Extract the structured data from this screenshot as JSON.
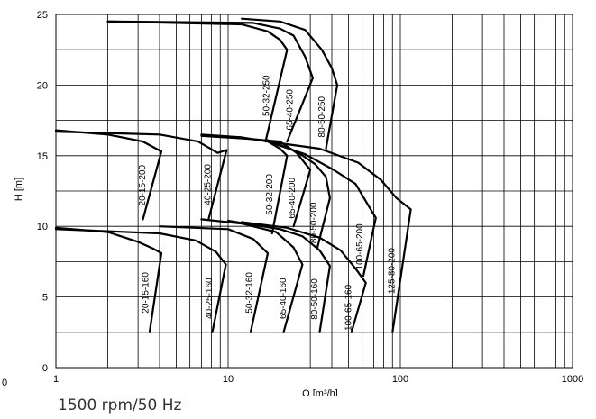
{
  "chart_data": {
    "type": "line",
    "x_scale": "log",
    "xlim": [
      1,
      1000
    ],
    "ylim": [
      0,
      25
    ],
    "xlabel": "Q [m³/h]",
    "ylabel": "H [m]",
    "x_ticks": [
      "1",
      "10",
      "100",
      "1000"
    ],
    "y_ticks": [
      "0",
      "5",
      "10",
      "15",
      "20",
      "25"
    ],
    "stray_label": "0",
    "grid": true,
    "series": [
      {
        "name": "20-15-160",
        "points": [
          [
            1,
            9.9
          ],
          [
            2,
            9.6
          ],
          [
            3,
            8.9
          ],
          [
            3.7,
            8.4
          ],
          [
            4.1,
            8.1
          ],
          [
            3.5,
            2.5
          ]
        ]
      },
      {
        "name": "40-25-160",
        "points": [
          [
            1,
            9.8
          ],
          [
            4,
            9.5
          ],
          [
            6.5,
            9.0
          ],
          [
            8.5,
            8.2
          ],
          [
            9.7,
            7.3
          ],
          [
            8.1,
            2.5
          ]
        ]
      },
      {
        "name": "50-32-160",
        "points": [
          [
            4,
            10.0
          ],
          [
            10,
            9.8
          ],
          [
            14,
            9.1
          ],
          [
            17,
            8.1
          ],
          [
            13.5,
            2.5
          ]
        ]
      },
      {
        "name": "65-40-160",
        "points": [
          [
            7,
            10.5
          ],
          [
            12,
            10.2
          ],
          [
            19,
            9.6
          ],
          [
            24,
            8.5
          ],
          [
            27,
            7.3
          ],
          [
            21,
            2.5
          ]
        ]
      },
      {
        "name": "80-50-160",
        "points": [
          [
            10,
            10.4
          ],
          [
            20,
            9.8
          ],
          [
            27,
            9.3
          ],
          [
            34,
            8.3
          ],
          [
            39,
            7.2
          ],
          [
            34,
            2.5
          ]
        ]
      },
      {
        "name": "100-65-160",
        "points": [
          [
            12,
            10.3
          ],
          [
            22,
            9.9
          ],
          [
            34,
            9.2
          ],
          [
            45,
            8.3
          ],
          [
            55,
            7.0
          ],
          [
            63,
            6.0
          ],
          [
            52,
            2.5
          ]
        ]
      },
      {
        "name": "20-15-200",
        "points": [
          [
            1,
            16.8
          ],
          [
            2,
            16.5
          ],
          [
            3.2,
            16.0
          ],
          [
            4.1,
            15.3
          ],
          [
            3.2,
            10.5
          ]
        ]
      },
      {
        "name": "40-25-200",
        "points": [
          [
            1,
            16.7
          ],
          [
            4,
            16.5
          ],
          [
            6.7,
            16.0
          ],
          [
            8.7,
            15.2
          ],
          [
            9.8,
            15.4
          ],
          [
            7.7,
            10.5
          ]
        ]
      },
      {
        "name": "50-32-200",
        "points": [
          [
            7,
            16.5
          ],
          [
            12,
            16.3
          ],
          [
            17,
            16.0
          ],
          [
            20,
            15.5
          ],
          [
            22,
            15.0
          ],
          [
            18,
            9.5
          ]
        ]
      },
      {
        "name": "65-40-200",
        "points": [
          [
            7,
            16.4
          ],
          [
            13,
            16.2
          ],
          [
            20,
            16.0
          ],
          [
            25,
            15.2
          ],
          [
            30,
            14.0
          ],
          [
            24,
            10.0
          ]
        ]
      },
      {
        "name": "80-50-200",
        "points": [
          [
            17,
            16.1
          ],
          [
            25,
            15.3
          ],
          [
            32,
            14.4
          ],
          [
            37,
            13.5
          ],
          [
            39,
            12.0
          ],
          [
            33,
            8.5
          ]
        ]
      },
      {
        "name": "100-65-200",
        "points": [
          [
            17,
            16.0
          ],
          [
            28,
            15.1
          ],
          [
            41,
            14.0
          ],
          [
            55,
            13.0
          ],
          [
            65,
            11.5
          ],
          [
            72,
            10.6
          ],
          [
            61,
            6.5
          ]
        ]
      },
      {
        "name": "125-80-200",
        "points": [
          [
            17,
            16.0
          ],
          [
            34,
            15.5
          ],
          [
            57,
            14.5
          ],
          [
            77,
            13.3
          ],
          [
            95,
            12.0
          ],
          [
            115,
            11.2
          ],
          [
            90,
            2.5
          ]
        ]
      },
      {
        "name": "50-32-250",
        "points": [
          [
            2,
            24.5
          ],
          [
            12,
            24.3
          ],
          [
            17,
            23.8
          ],
          [
            20,
            23.2
          ],
          [
            22,
            22.5
          ],
          [
            16.5,
            16.0
          ]
        ]
      },
      {
        "name": "65-40-250",
        "points": [
          [
            2,
            24.5
          ],
          [
            14,
            24.4
          ],
          [
            20,
            24.0
          ],
          [
            24,
            23.5
          ],
          [
            28,
            22.0
          ],
          [
            31,
            20.5
          ],
          [
            22,
            16.0
          ]
        ]
      },
      {
        "name": "80-50-250",
        "points": [
          [
            12,
            24.7
          ],
          [
            20,
            24.5
          ],
          [
            28,
            23.9
          ],
          [
            35,
            22.5
          ],
          [
            40,
            21.2
          ],
          [
            43,
            20.0
          ],
          [
            37,
            15.5
          ]
        ]
      }
    ]
  },
  "caption": "1500 rpm/50 Hz"
}
